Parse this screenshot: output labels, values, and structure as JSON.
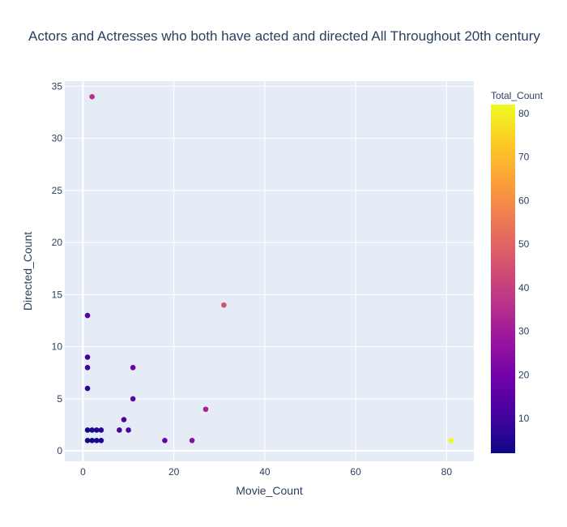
{
  "chart_data": {
    "type": "scatter",
    "title": "Actors and Actresses who both have acted and directed All Throughout 20th century",
    "xlabel": "Movie_Count",
    "ylabel": "Directed_Count",
    "xlim": [
      -4,
      86
    ],
    "ylim": [
      -1,
      35.5
    ],
    "x_ticks": [
      0,
      20,
      40,
      60,
      80
    ],
    "y_ticks": [
      0,
      5,
      10,
      15,
      20,
      25,
      30,
      35
    ],
    "grid": true,
    "colorbar": {
      "title": "Total_Count",
      "range": [
        2,
        82
      ],
      "ticks": [
        10,
        20,
        30,
        40,
        50,
        60,
        70,
        80
      ],
      "colorscale": [
        "#0d0887",
        "#46039f",
        "#7201a8",
        "#9c179e",
        "#bd3786",
        "#d8576b",
        "#ed7953",
        "#fb9f3a",
        "#fdca26",
        "#f0f921"
      ]
    },
    "points": [
      {
        "x": 2,
        "y": 34,
        "c": 36
      },
      {
        "x": 31,
        "y": 14,
        "c": 45
      },
      {
        "x": 1,
        "y": 13,
        "c": 14
      },
      {
        "x": 1,
        "y": 9,
        "c": 10
      },
      {
        "x": 1,
        "y": 8,
        "c": 9
      },
      {
        "x": 11,
        "y": 8,
        "c": 19
      },
      {
        "x": 1,
        "y": 6,
        "c": 7
      },
      {
        "x": 11,
        "y": 5,
        "c": 16
      },
      {
        "x": 27,
        "y": 4,
        "c": 31
      },
      {
        "x": 9,
        "y": 3,
        "c": 12
      },
      {
        "x": 1,
        "y": 2,
        "c": 3
      },
      {
        "x": 2,
        "y": 2,
        "c": 4
      },
      {
        "x": 3,
        "y": 2,
        "c": 5
      },
      {
        "x": 4,
        "y": 2,
        "c": 6
      },
      {
        "x": 8,
        "y": 2,
        "c": 10
      },
      {
        "x": 10,
        "y": 2,
        "c": 12
      },
      {
        "x": 1,
        "y": 1,
        "c": 2
      },
      {
        "x": 2,
        "y": 1,
        "c": 3
      },
      {
        "x": 3,
        "y": 1,
        "c": 4
      },
      {
        "x": 4,
        "y": 1,
        "c": 5
      },
      {
        "x": 18,
        "y": 1,
        "c": 19
      },
      {
        "x": 24,
        "y": 1,
        "c": 25
      },
      {
        "x": 81,
        "y": 1,
        "c": 82
      }
    ]
  }
}
